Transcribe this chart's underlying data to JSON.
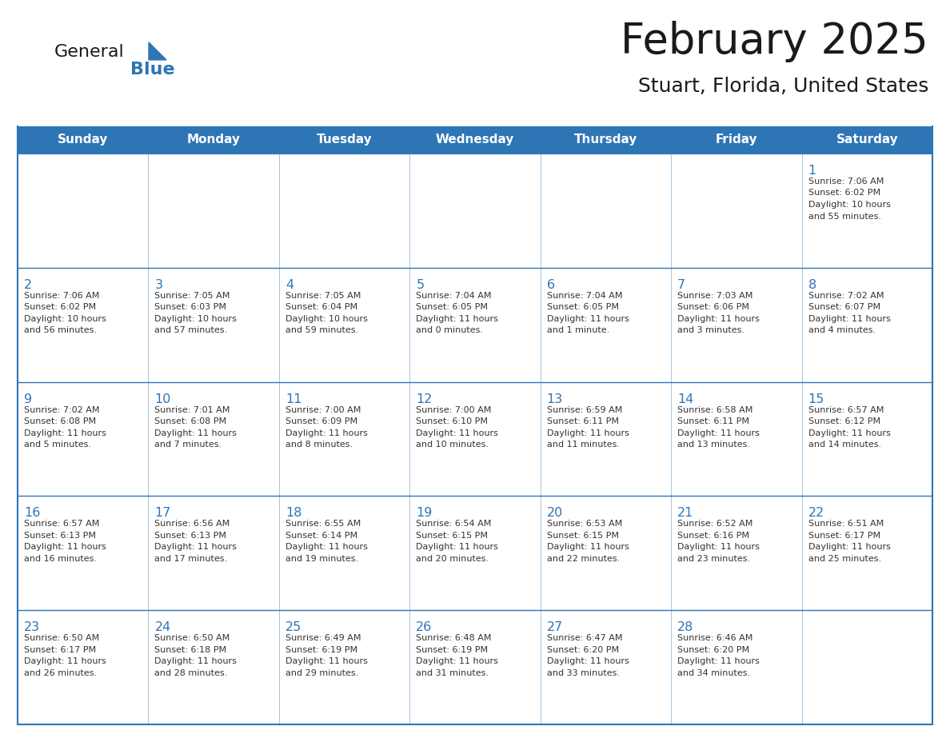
{
  "title": "February 2025",
  "subtitle": "Stuart, Florida, United States",
  "header_color": "#2E75B6",
  "header_text_color": "#FFFFFF",
  "day_names": [
    "Sunday",
    "Monday",
    "Tuesday",
    "Wednesday",
    "Thursday",
    "Friday",
    "Saturday"
  ],
  "cell_border_color": "#2E75B6",
  "day_number_color": "#2E75B6",
  "text_color": "#333333",
  "bg_color": "#FFFFFF",
  "logo_general_color": "#1a1a1a",
  "logo_blue_color": "#2E75B6",
  "calendar": [
    [
      null,
      null,
      null,
      null,
      null,
      null,
      {
        "day": 1,
        "sunrise": "7:06 AM",
        "sunset": "6:02 PM",
        "daylight": "10 hours and 55 minutes."
      }
    ],
    [
      {
        "day": 2,
        "sunrise": "7:06 AM",
        "sunset": "6:02 PM",
        "daylight": "10 hours and 56 minutes."
      },
      {
        "day": 3,
        "sunrise": "7:05 AM",
        "sunset": "6:03 PM",
        "daylight": "10 hours and 57 minutes."
      },
      {
        "day": 4,
        "sunrise": "7:05 AM",
        "sunset": "6:04 PM",
        "daylight": "10 hours and 59 minutes."
      },
      {
        "day": 5,
        "sunrise": "7:04 AM",
        "sunset": "6:05 PM",
        "daylight": "11 hours and 0 minutes."
      },
      {
        "day": 6,
        "sunrise": "7:04 AM",
        "sunset": "6:05 PM",
        "daylight": "11 hours and 1 minute."
      },
      {
        "day": 7,
        "sunrise": "7:03 AM",
        "sunset": "6:06 PM",
        "daylight": "11 hours and 3 minutes."
      },
      {
        "day": 8,
        "sunrise": "7:02 AM",
        "sunset": "6:07 PM",
        "daylight": "11 hours and 4 minutes."
      }
    ],
    [
      {
        "day": 9,
        "sunrise": "7:02 AM",
        "sunset": "6:08 PM",
        "daylight": "11 hours and 5 minutes."
      },
      {
        "day": 10,
        "sunrise": "7:01 AM",
        "sunset": "6:08 PM",
        "daylight": "11 hours and 7 minutes."
      },
      {
        "day": 11,
        "sunrise": "7:00 AM",
        "sunset": "6:09 PM",
        "daylight": "11 hours and 8 minutes."
      },
      {
        "day": 12,
        "sunrise": "7:00 AM",
        "sunset": "6:10 PM",
        "daylight": "11 hours and 10 minutes."
      },
      {
        "day": 13,
        "sunrise": "6:59 AM",
        "sunset": "6:11 PM",
        "daylight": "11 hours and 11 minutes."
      },
      {
        "day": 14,
        "sunrise": "6:58 AM",
        "sunset": "6:11 PM",
        "daylight": "11 hours and 13 minutes."
      },
      {
        "day": 15,
        "sunrise": "6:57 AM",
        "sunset": "6:12 PM",
        "daylight": "11 hours and 14 minutes."
      }
    ],
    [
      {
        "day": 16,
        "sunrise": "6:57 AM",
        "sunset": "6:13 PM",
        "daylight": "11 hours and 16 minutes."
      },
      {
        "day": 17,
        "sunrise": "6:56 AM",
        "sunset": "6:13 PM",
        "daylight": "11 hours and 17 minutes."
      },
      {
        "day": 18,
        "sunrise": "6:55 AM",
        "sunset": "6:14 PM",
        "daylight": "11 hours and 19 minutes."
      },
      {
        "day": 19,
        "sunrise": "6:54 AM",
        "sunset": "6:15 PM",
        "daylight": "11 hours and 20 minutes."
      },
      {
        "day": 20,
        "sunrise": "6:53 AM",
        "sunset": "6:15 PM",
        "daylight": "11 hours and 22 minutes."
      },
      {
        "day": 21,
        "sunrise": "6:52 AM",
        "sunset": "6:16 PM",
        "daylight": "11 hours and 23 minutes."
      },
      {
        "day": 22,
        "sunrise": "6:51 AM",
        "sunset": "6:17 PM",
        "daylight": "11 hours and 25 minutes."
      }
    ],
    [
      {
        "day": 23,
        "sunrise": "6:50 AM",
        "sunset": "6:17 PM",
        "daylight": "11 hours and 26 minutes."
      },
      {
        "day": 24,
        "sunrise": "6:50 AM",
        "sunset": "6:18 PM",
        "daylight": "11 hours and 28 minutes."
      },
      {
        "day": 25,
        "sunrise": "6:49 AM",
        "sunset": "6:19 PM",
        "daylight": "11 hours and 29 minutes."
      },
      {
        "day": 26,
        "sunrise": "6:48 AM",
        "sunset": "6:19 PM",
        "daylight": "11 hours and 31 minutes."
      },
      {
        "day": 27,
        "sunrise": "6:47 AM",
        "sunset": "6:20 PM",
        "daylight": "11 hours and 33 minutes."
      },
      {
        "day": 28,
        "sunrise": "6:46 AM",
        "sunset": "6:20 PM",
        "daylight": "11 hours and 34 minutes."
      },
      null
    ]
  ]
}
